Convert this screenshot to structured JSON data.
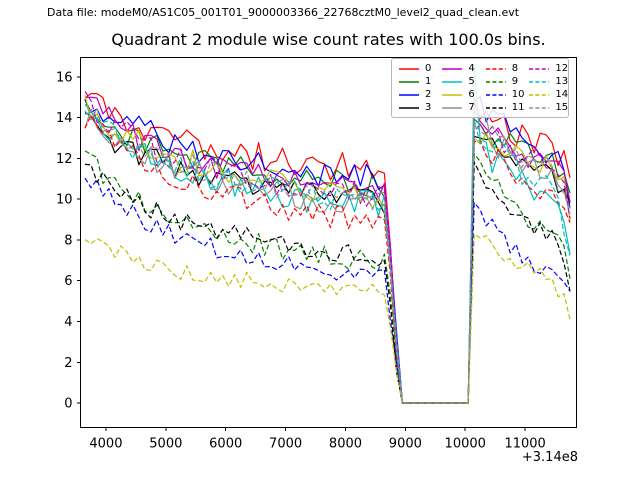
{
  "header": {
    "data_file_label": "Data file: modeM0/AS1C05_001T01_9000003366_22768cztM0_level2_quad_clean.evt",
    "title": "Quadrant 2 module wise count rates with 100.0s bins."
  },
  "chart_data": {
    "type": "line",
    "title": "Quadrant 2 module wise count rates with 100.0s bins.",
    "xlabel": "",
    "ylabel": "",
    "x_offset_text": "+3.14e8",
    "xlim": [
      3575,
      11858
    ],
    "ylim": [
      -1.2,
      16.95
    ],
    "xticks": [
      4000,
      5000,
      6000,
      7000,
      8000,
      9000,
      10000,
      11000
    ],
    "xtick_labels": [
      "4000",
      "5000",
      "6000",
      "7000",
      "8000",
      "9000",
      "10000",
      "11000"
    ],
    "yticks": [
      0,
      2,
      4,
      6,
      8,
      10,
      12,
      14,
      16
    ],
    "ytick_labels": [
      "0",
      "2",
      "4",
      "6",
      "8",
      "10",
      "12",
      "14",
      "16"
    ],
    "grid": false,
    "legend_position": "upper right",
    "legend_ncol": 4,
    "bin_seconds": 100,
    "x_start": 3650,
    "x_end": 11750,
    "sample_step": 100,
    "x_checkpoints": [
      3650,
      3800,
      4000,
      4300,
      4700,
      5200,
      5800,
      6400,
      7000,
      7600,
      8200,
      8700,
      8800,
      8950,
      10050,
      10100,
      10150,
      10300,
      10500,
      10800,
      11100,
      11400,
      11650,
      11750
    ],
    "series": [
      {
        "name": "0",
        "color": "#ff0000",
        "dashed": false,
        "noise": 0.5,
        "values": [
          15.4,
          15.1,
          14.6,
          14.1,
          13.5,
          13.0,
          12.6,
          12.2,
          11.9,
          11.7,
          11.5,
          11.4,
          5.0,
          0,
          0,
          7.2,
          14.4,
          14.2,
          13.8,
          13.4,
          13.0,
          12.8,
          11.9,
          10.8
        ]
      },
      {
        "name": "1",
        "color": "#008000",
        "dashed": false,
        "noise": 0.42,
        "values": [
          14.6,
          14.3,
          13.8,
          13.3,
          12.7,
          12.2,
          11.8,
          11.4,
          11.1,
          10.9,
          10.7,
          10.6,
          4.6,
          0,
          0,
          6.9,
          13.7,
          13.5,
          13.1,
          12.7,
          12.3,
          12.1,
          11.1,
          9.9
        ]
      },
      {
        "name": "2",
        "color": "#0000ff",
        "dashed": false,
        "noise": 0.48,
        "values": [
          15.2,
          14.8,
          14.4,
          13.8,
          13.2,
          12.7,
          12.2,
          11.9,
          11.5,
          11.3,
          11.1,
          11.0,
          4.8,
          0,
          0,
          7.3,
          14.6,
          14.3,
          13.8,
          13.2,
          12.7,
          12.4,
          11.4,
          10.2
        ]
      },
      {
        "name": "3",
        "color": "#000000",
        "dashed": false,
        "noise": 0.4,
        "values": [
          13.9,
          13.6,
          13.1,
          12.6,
          12.0,
          11.5,
          11.1,
          10.7,
          10.4,
          10.2,
          10.0,
          9.9,
          4.3,
          0,
          0,
          6.8,
          13.6,
          13.3,
          12.8,
          12.2,
          11.7,
          11.4,
          10.5,
          9.3
        ]
      },
      {
        "name": "4",
        "color": "#bf00bf",
        "dashed": false,
        "noise": 0.42,
        "values": [
          14.9,
          14.5,
          14.0,
          13.4,
          12.7,
          12.1,
          11.6,
          11.2,
          10.8,
          10.6,
          10.4,
          10.3,
          4.5,
          0,
          0,
          7.0,
          13.9,
          13.6,
          13.2,
          12.6,
          12.1,
          11.9,
          10.9,
          9.7
        ]
      },
      {
        "name": "5",
        "color": "#00bfbf",
        "dashed": false,
        "noise": 0.5,
        "values": [
          14.4,
          14.0,
          13.5,
          12.8,
          12.1,
          11.5,
          11.0,
          10.5,
          10.2,
          9.9,
          9.7,
          9.6,
          4.1,
          0,
          0,
          7.9,
          15.8,
          12.4,
          11.8,
          11.2,
          10.6,
          10.3,
          9.0,
          7.9
        ]
      },
      {
        "name": "6",
        "color": "#bfbf00",
        "dashed": false,
        "noise": 0.42,
        "values": [
          14.7,
          14.3,
          13.8,
          13.2,
          12.5,
          12.0,
          11.5,
          11.1,
          10.7,
          10.4,
          10.3,
          10.1,
          4.4,
          0,
          0,
          6.8,
          13.5,
          13.2,
          12.9,
          12.3,
          11.9,
          11.7,
          10.7,
          9.5
        ]
      },
      {
        "name": "7",
        "color": "#909090",
        "dashed": false,
        "noise": 0.45,
        "values": [
          14.1,
          13.7,
          13.3,
          12.7,
          12.0,
          11.5,
          11.0,
          10.6,
          10.3,
          10.0,
          9.8,
          9.7,
          4.2,
          0,
          0,
          7.5,
          14.9,
          13.6,
          12.7,
          12.0,
          11.5,
          11.2,
          10.3,
          9.1
        ]
      },
      {
        "name": "8",
        "color": "#ff0000",
        "dashed": true,
        "noise": 0.4,
        "values": [
          14.0,
          13.6,
          13.0,
          12.3,
          11.6,
          11.0,
          10.4,
          9.9,
          9.5,
          9.2,
          9.0,
          8.9,
          3.8,
          0,
          0,
          6.6,
          13.1,
          12.7,
          12.2,
          11.3,
          10.7,
          10.4,
          9.5,
          8.5
        ]
      },
      {
        "name": "9",
        "color": "#008000",
        "dashed": true,
        "noise": 0.35,
        "values": [
          12.1,
          11.7,
          11.1,
          10.4,
          9.6,
          9.0,
          8.4,
          7.9,
          7.5,
          7.2,
          7.0,
          6.9,
          2.9,
          0,
          0,
          5.9,
          11.8,
          11.3,
          10.7,
          9.7,
          9.0,
          8.6,
          7.5,
          6.3
        ]
      },
      {
        "name": "10",
        "color": "#0000ff",
        "dashed": true,
        "noise": 0.3,
        "values": [
          11.2,
          10.8,
          10.2,
          9.6,
          8.8,
          8.2,
          7.6,
          7.2,
          6.8,
          6.5,
          6.3,
          6.2,
          2.6,
          0,
          0,
          4.8,
          9.6,
          9.1,
          8.4,
          7.5,
          6.7,
          6.3,
          5.8,
          5.2
        ]
      },
      {
        "name": "11",
        "color": "#000000",
        "dashed": true,
        "noise": 0.35,
        "values": [
          11.7,
          11.3,
          10.8,
          10.2,
          9.5,
          9.0,
          8.5,
          8.1,
          7.7,
          7.4,
          7.3,
          7.1,
          3.1,
          0,
          0,
          5.7,
          11.4,
          10.9,
          10.3,
          9.3,
          8.6,
          8.2,
          7.0,
          5.9
        ]
      },
      {
        "name": "12",
        "color": "#bf00bf",
        "dashed": true,
        "noise": 0.4,
        "values": [
          14.8,
          14.4,
          13.9,
          13.3,
          12.6,
          12.0,
          11.5,
          11.1,
          10.7,
          10.5,
          10.3,
          10.2,
          4.4,
          0,
          0,
          6.9,
          13.8,
          13.5,
          13.1,
          12.5,
          12.0,
          11.8,
          10.8,
          9.6
        ]
      },
      {
        "name": "13",
        "color": "#00bfbf",
        "dashed": true,
        "noise": 0.4,
        "values": [
          14.3,
          13.9,
          13.5,
          12.8,
          12.2,
          11.6,
          11.1,
          10.7,
          10.4,
          10.1,
          10.0,
          9.8,
          4.3,
          0,
          0,
          6.7,
          13.4,
          13.0,
          12.5,
          11.6,
          11.0,
          10.7,
          8.8,
          6.9
        ]
      },
      {
        "name": "14",
        "color": "#bfbf00",
        "dashed": true,
        "noise": 0.28,
        "values": [
          8.2,
          8.0,
          7.7,
          7.3,
          6.9,
          6.5,
          6.2,
          6.0,
          5.8,
          5.6,
          5.5,
          5.4,
          2.3,
          0,
          0,
          4.4,
          8.7,
          8.3,
          7.8,
          6.9,
          6.4,
          6.0,
          5.2,
          4.4
        ]
      },
      {
        "name": "15",
        "color": "#909090",
        "dashed": true,
        "noise": 0.4,
        "values": [
          14.5,
          14.1,
          13.6,
          13.0,
          12.3,
          11.8,
          11.3,
          10.9,
          10.5,
          10.2,
          10.1,
          9.9,
          4.3,
          0,
          0,
          7.0,
          14.0,
          13.6,
          13.2,
          12.4,
          11.9,
          11.6,
          10.5,
          9.2
        ]
      }
    ]
  }
}
